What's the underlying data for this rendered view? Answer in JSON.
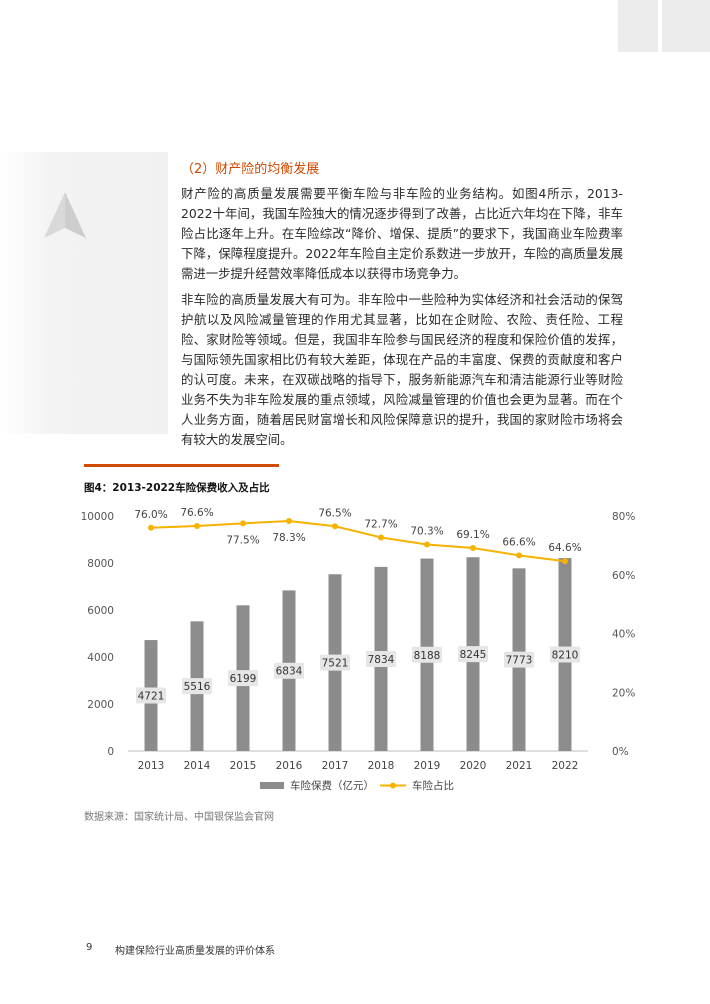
{
  "section": {
    "heading": "（2）财产险的均衡发展",
    "paragraphs": [
      "财产险的高质量发展需要平衡车险与非车险的业务结构。如图4所示，2013-2022十年间，我国车险独大的情况逐步得到了改善，占比近六年均在下降，非车险占比逐年上升。在车险综改“降价、增保、提质”的要求下，我国商业车险费率下降，保障程度提升。2022年车险自主定价系数进一步放开，车险的高质量发展需进一步提升经营效率降低成本以获得市场竞争力。",
      "非车险的高质量发展大有可为。非车险中一些险种为实体经济和社会活动的保驾护航以及风险减量管理的作用尤其显著，比如在企财险、农险、责任险、工程险、家财险等领域。但是，我国非车险参与国民经济的程度和保险价值的发挥，与国际领先国家相比仍有较大差距，体现在产品的丰富度、保费的贡献度和客户的认可度。未来，在双碳战略的指导下，服务新能源汽车和清洁能源行业等财险业务不失为非车险发展的重点领域，风险减量管理的价值也会更为显著。而在个人业务方面，随着居民财富增长和风险保障意识的提升，我国的家财险市场将会有较大的发展空间。"
    ]
  },
  "figure": {
    "title": "图4：2013-2022车险保费收入及占比",
    "source": "数据来源：国家统计局、中国银保监会官网"
  },
  "chart_data": {
    "type": "bar",
    "categories": [
      "2013",
      "2014",
      "2015",
      "2016",
      "2017",
      "2018",
      "2019",
      "2020",
      "2021",
      "2022"
    ],
    "series": [
      {
        "name": "车险保费（亿元）",
        "type": "bar",
        "axis": "left",
        "values": [
          4721,
          5516,
          6199,
          6834,
          7521,
          7834,
          8188,
          8245,
          7773,
          8210
        ],
        "labels": [
          "4721",
          "5516",
          "6199",
          "6834",
          "7521",
          "7834",
          "8188",
          "8245",
          "7773",
          "8210"
        ],
        "color": "#8c8c8c"
      },
      {
        "name": "车险占比",
        "type": "line",
        "axis": "right",
        "values": [
          76.0,
          76.6,
          77.5,
          78.3,
          76.5,
          72.7,
          70.3,
          69.1,
          66.6,
          64.6
        ],
        "labels": [
          "76.0%",
          "76.6%",
          "77.5%",
          "78.3%",
          "76.5%",
          "72.7%",
          "70.3%",
          "69.1%",
          "66.6%",
          "64.6%"
        ],
        "color": "#f5b300"
      }
    ],
    "y_left": {
      "min": 0,
      "max": 10000,
      "ticks": [
        "0",
        "2000",
        "4000",
        "6000",
        "8000",
        "10000"
      ]
    },
    "y_right": {
      "min": 0,
      "max": 80,
      "ticks": [
        "0%",
        "20%",
        "40%",
        "60%",
        "80%"
      ]
    },
    "grid": false,
    "legend": "bottom"
  },
  "footer": {
    "page": "9",
    "title": "构建保险行业高质量发展的评价体系"
  },
  "colors": {
    "accent": "#d04a02",
    "bar": "#8c8c8c",
    "line": "#f5b300"
  }
}
